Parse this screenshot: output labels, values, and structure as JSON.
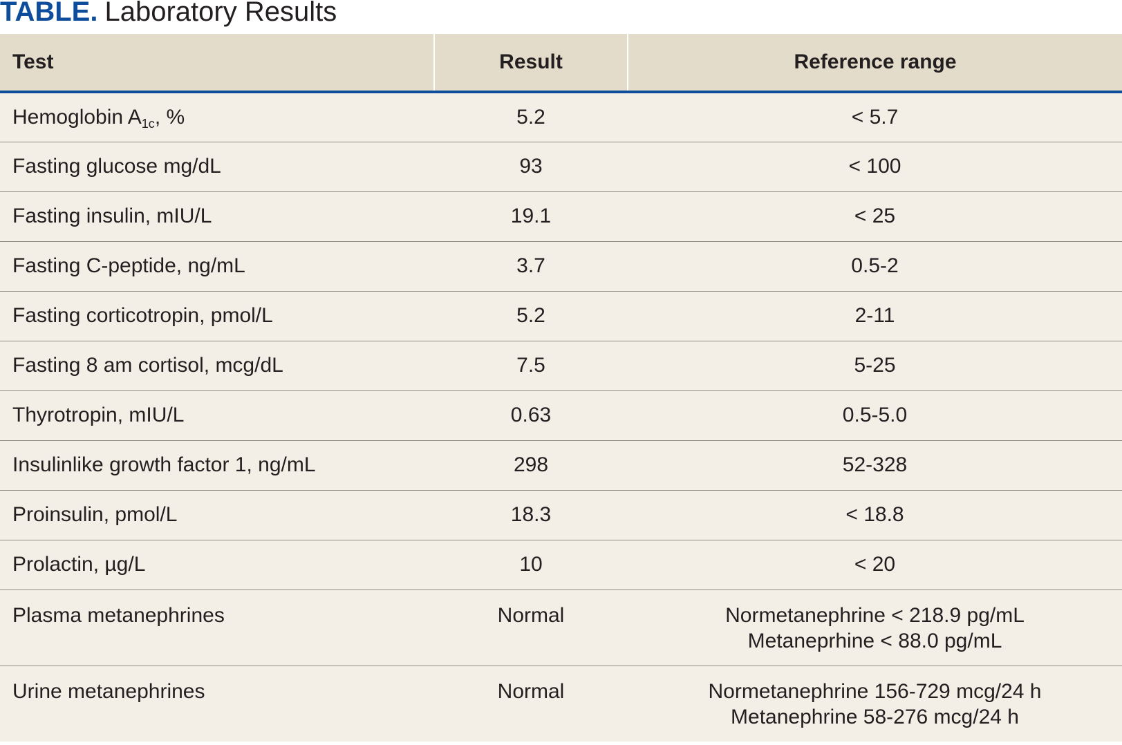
{
  "title": {
    "lead": "TABLE.",
    "rest": "Laboratory Results"
  },
  "columns": [
    "Test",
    "Result",
    "Reference range"
  ],
  "rows": [
    {
      "test": "Hemoglobin A",
      "test_sub": "1c",
      "test_suffix": ", %",
      "result": "5.2",
      "range": [
        "< 5.7"
      ]
    },
    {
      "test": "Fasting glucose mg/dL",
      "result": "93",
      "range": [
        "< 100"
      ]
    },
    {
      "test": "Fasting insulin, mIU/L",
      "result": "19.1",
      "range": [
        "< 25"
      ]
    },
    {
      "test": "Fasting C-peptide, ng/mL",
      "result": "3.7",
      "range": [
        "0.5-2"
      ]
    },
    {
      "test": "Fasting corticotropin, pmol/L",
      "result": "5.2",
      "range": [
        "2-11"
      ]
    },
    {
      "test": "Fasting 8 am cortisol, mcg/dL",
      "result": "7.5",
      "range": [
        "5-25"
      ]
    },
    {
      "test": "Thyrotropin, mIU/L",
      "result": "0.63",
      "range": [
        "0.5-5.0"
      ]
    },
    {
      "test": "Insulinlike growth factor 1, ng/mL",
      "result": "298",
      "range": [
        "52-328"
      ]
    },
    {
      "test": "Proinsulin, pmol/L",
      "result": "18.3",
      "range": [
        "< 18.8"
      ]
    },
    {
      "test": "Prolactin, µg/L",
      "result": "10",
      "range": [
        "< 20"
      ]
    },
    {
      "test": "Plasma metanephrines",
      "result": "Normal",
      "range": [
        "Normetanephrine < 218.9 pg/mL",
        "Metaneprhine < 88.0 pg/mL"
      ]
    },
    {
      "test": "Urine metanephrines",
      "result": "Normal",
      "range": [
        "Normetanephrine 156-729 mcg/24 h",
        "Metanephrine 58-276 mcg/24 h"
      ]
    }
  ]
}
